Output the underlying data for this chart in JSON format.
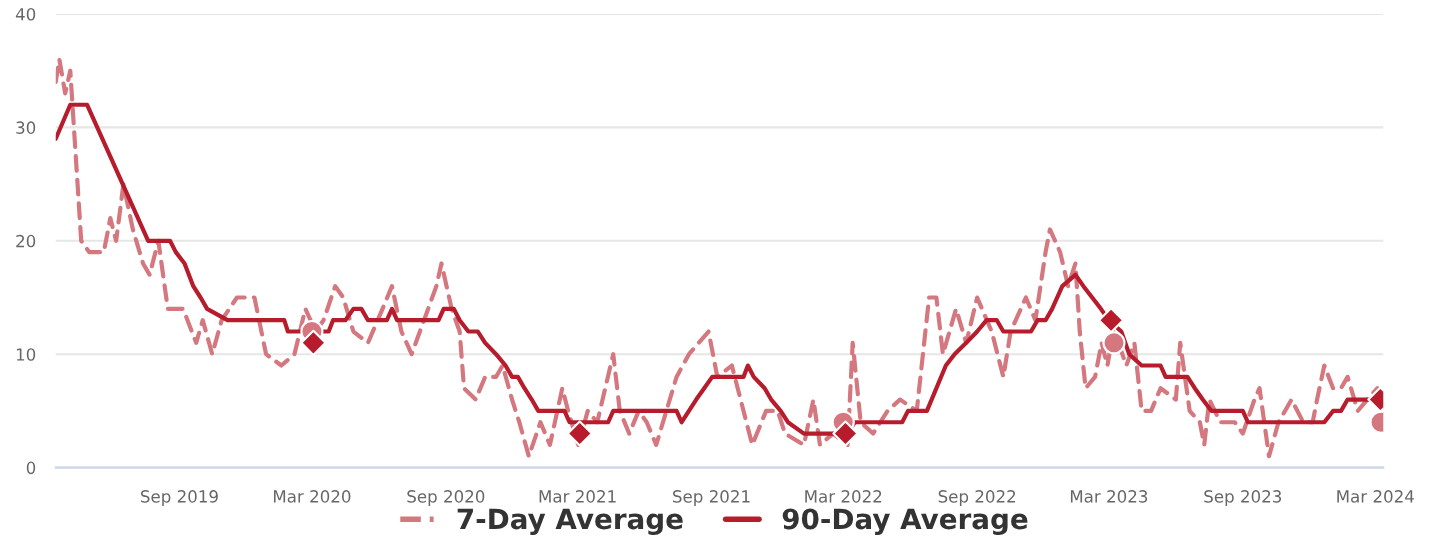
{
  "chart_data": {
    "type": "line",
    "xlim": [
      "2019-03-15",
      "2024-03-12"
    ],
    "xticks": [
      {
        "value": "2019-09-01",
        "label": "Sep 2019"
      },
      {
        "value": "2020-03-01",
        "label": "Mar 2020"
      },
      {
        "value": "2020-09-01",
        "label": "Sep 2020"
      },
      {
        "value": "2021-03-01",
        "label": "Mar 2021"
      },
      {
        "value": "2021-09-01",
        "label": "Sep 2021"
      },
      {
        "value": "2022-03-01",
        "label": "Mar 2022"
      },
      {
        "value": "2022-09-01",
        "label": "Sep 2022"
      },
      {
        "value": "2023-03-01",
        "label": "Mar 2023"
      },
      {
        "value": "2023-09-01",
        "label": "Sep 2023"
      },
      {
        "value": "2024-03-01",
        "label": "Mar 2024"
      }
    ],
    "ylim": [
      0,
      40
    ],
    "yticks": [
      0,
      10,
      20,
      30,
      40
    ],
    "grid": "y",
    "legend": "bottom",
    "series": [
      {
        "name": "7-Day Average",
        "color": "#d4777e",
        "line_style": "dashed",
        "x": [
          "2019-03-15",
          "2019-03-20",
          "2019-03-28",
          "2019-04-04",
          "2019-04-19",
          "2019-04-30",
          "2019-05-20",
          "2019-05-29",
          "2019-06-06",
          "2019-06-16",
          "2019-06-29",
          "2019-07-13",
          "2019-07-22",
          "2019-08-03",
          "2019-08-16",
          "2019-09-06",
          "2019-09-24",
          "2019-10-03",
          "2019-10-16",
          "2019-10-29",
          "2019-11-19",
          "2019-12-13",
          "2019-12-29",
          "2020-01-19",
          "2020-02-06",
          "2020-02-21",
          "2020-03-06",
          "2020-03-17",
          "2020-04-02",
          "2020-04-13",
          "2020-04-27",
          "2020-05-17",
          "2020-06-06",
          "2020-06-19",
          "2020-07-02",
          "2020-07-16",
          "2020-08-02",
          "2020-08-19",
          "2020-08-26",
          "2020-09-09",
          "2020-09-20",
          "2020-09-26",
          "2020-10-12",
          "2020-10-25",
          "2020-11-09",
          "2020-11-18",
          "2020-12-01",
          "2020-12-11",
          "2020-12-24",
          "2021-01-09",
          "2021-01-22",
          "2021-02-08",
          "2021-02-16",
          "2021-03-02",
          "2021-03-15",
          "2021-03-28",
          "2021-04-19",
          "2021-04-28",
          "2021-05-11",
          "2021-05-24",
          "2021-06-04",
          "2021-06-17",
          "2021-07-01",
          "2021-07-15",
          "2021-08-01",
          "2021-08-28",
          "2021-09-09",
          "2021-09-29",
          "2021-10-19",
          "2021-10-27",
          "2021-11-15",
          "2021-12-01",
          "2021-12-11",
          "2022-01-06",
          "2022-01-19",
          "2022-01-28",
          "2022-02-15",
          "2022-03-07",
          "2022-03-14",
          "2022-03-25",
          "2022-04-11",
          "2022-05-01",
          "2022-05-18",
          "2022-06-10",
          "2022-06-27",
          "2022-07-07",
          "2022-07-16",
          "2022-08-03",
          "2022-08-17",
          "2022-09-01",
          "2022-09-21",
          "2022-10-07",
          "2022-10-17",
          "2022-11-07",
          "2022-11-20",
          "2022-12-04",
          "2022-12-10",
          "2022-12-24",
          "2023-01-04",
          "2023-01-14",
          "2023-01-20",
          "2023-01-28",
          "2023-02-10",
          "2023-02-19",
          "2023-02-27",
          "2023-03-07",
          "2023-03-14",
          "2023-03-25",
          "2023-04-05",
          "2023-04-15",
          "2023-04-28",
          "2023-05-11",
          "2023-06-01",
          "2023-06-07",
          "2023-06-20",
          "2023-07-04",
          "2023-07-10",
          "2023-07-17",
          "2023-08-01",
          "2023-08-21",
          "2023-09-01",
          "2023-09-17",
          "2023-09-24",
          "2023-10-07",
          "2023-10-20",
          "2023-11-07",
          "2023-11-23",
          "2023-12-06",
          "2023-12-12",
          "2023-12-22",
          "2024-01-03",
          "2024-01-14",
          "2024-01-23",
          "2024-02-06",
          "2024-02-19",
          "2024-03-04"
        ],
        "values": [
          34,
          36,
          33,
          35,
          20,
          19,
          19,
          22,
          20,
          25,
          21,
          18,
          17,
          20,
          14,
          14,
          11,
          13,
          10,
          13,
          15,
          15,
          10,
          9,
          10,
          14,
          12,
          13,
          16,
          15,
          12,
          11,
          14,
          16,
          12,
          10,
          13,
          16,
          18,
          14,
          12,
          7,
          6,
          8,
          8,
          9,
          6,
          4,
          1,
          4,
          2,
          7,
          5,
          2,
          5,
          4,
          10,
          5,
          3,
          5,
          4,
          2,
          5,
          8,
          10,
          12,
          8,
          9,
          4,
          2,
          5,
          5,
          3,
          2,
          6,
          2,
          3,
          2,
          11,
          4,
          3,
          5,
          6,
          5,
          15,
          15,
          10,
          14,
          11,
          15,
          12,
          8,
          12,
          15,
          13,
          19,
          21,
          19,
          16,
          18,
          12,
          7,
          8,
          11,
          9,
          12,
          11,
          9,
          11,
          5,
          5,
          7,
          6,
          11,
          5,
          4,
          2,
          6,
          4,
          4,
          3,
          6,
          7,
          1,
          4,
          6,
          4,
          4,
          6,
          9,
          7,
          7,
          8,
          5,
          6,
          7
        ]
      },
      {
        "name": "90-Day Average",
        "color": "#b71c2c",
        "line_style": "solid",
        "x": [
          "2019-03-15",
          "2019-04-04",
          "2019-04-27",
          "2019-07-20",
          "2019-08-19",
          "2019-08-27",
          "2019-09-08",
          "2019-09-20",
          "2019-09-30",
          "2019-10-09",
          "2019-11-06",
          "2020-01-23",
          "2020-01-28",
          "2020-03-24",
          "2020-03-30",
          "2020-04-16",
          "2020-04-27",
          "2020-05-08",
          "2020-05-17",
          "2020-06-12",
          "2020-06-19",
          "2020-06-26",
          "2020-08-22",
          "2020-08-29",
          "2020-09-12",
          "2020-09-20",
          "2020-10-02",
          "2020-10-15",
          "2020-10-25",
          "2020-11-09",
          "2020-11-22",
          "2020-12-01",
          "2020-12-09",
          "2020-12-18",
          "2020-12-28",
          "2021-01-06",
          "2021-02-11",
          "2021-02-18",
          "2021-04-12",
          "2021-04-19",
          "2021-07-15",
          "2021-07-22",
          "2021-08-01",
          "2021-08-11",
          "2021-08-22",
          "2021-09-02",
          "2021-10-15",
          "2021-10-21",
          "2021-10-29",
          "2021-11-13",
          "2021-11-22",
          "2021-12-05",
          "2021-12-15",
          "2022-01-06",
          "2022-03-06",
          "2022-03-17",
          "2022-05-21",
          "2022-05-29",
          "2022-06-24",
          "2022-07-20",
          "2022-08-01",
          "2022-08-17",
          "2022-09-01",
          "2022-09-14",
          "2022-09-28",
          "2022-10-07",
          "2022-11-14",
          "2022-11-23",
          "2022-12-04",
          "2022-12-13",
          "2022-12-27",
          "2023-01-14",
          "2023-01-25",
          "2023-02-06",
          "2023-02-18",
          "2023-03-01",
          "2023-03-18",
          "2023-03-29",
          "2023-04-15",
          "2023-05-11",
          "2023-05-18",
          "2023-06-17",
          "2023-06-27",
          "2023-07-08",
          "2023-07-20",
          "2023-09-01",
          "2023-09-08",
          "2023-12-22",
          "2024-01-03",
          "2024-01-14",
          "2024-01-23",
          "2024-03-04"
        ],
        "values": [
          29,
          32,
          32,
          20,
          20,
          19,
          18,
          16,
          15,
          14,
          13,
          13,
          12,
          12,
          13,
          13,
          14,
          14,
          13,
          13,
          14,
          13,
          13,
          14,
          14,
          13,
          12,
          12,
          11,
          10,
          9,
          8,
          8,
          7,
          6,
          5,
          5,
          4,
          4,
          5,
          5,
          4,
          5,
          6,
          7,
          8,
          8,
          9,
          8,
          7,
          6,
          5,
          4,
          3,
          3,
          4,
          4,
          5,
          5,
          9,
          10,
          11,
          12,
          13,
          13,
          12,
          12,
          13,
          13,
          14,
          16,
          17,
          16,
          15,
          14,
          13,
          12,
          10,
          9,
          9,
          8,
          8,
          7,
          6,
          5,
          5,
          4,
          4,
          5,
          5,
          6,
          6
        ]
      },
      {
        "type": "scatter",
        "marker": "circle",
        "color": "#d4777e",
        "x": [
          "2020-03-01",
          "2022-03-01",
          "2023-03-08",
          "2024-03-09"
        ],
        "values": [
          12,
          4,
          11,
          4
        ]
      },
      {
        "type": "scatter",
        "marker": "diamond",
        "color": "#b71c2c",
        "x": [
          "2020-03-03",
          "2021-03-04",
          "2022-03-04",
          "2023-03-04",
          "2024-03-08"
        ],
        "values": [
          11,
          3,
          3,
          13,
          6
        ]
      }
    ]
  }
}
